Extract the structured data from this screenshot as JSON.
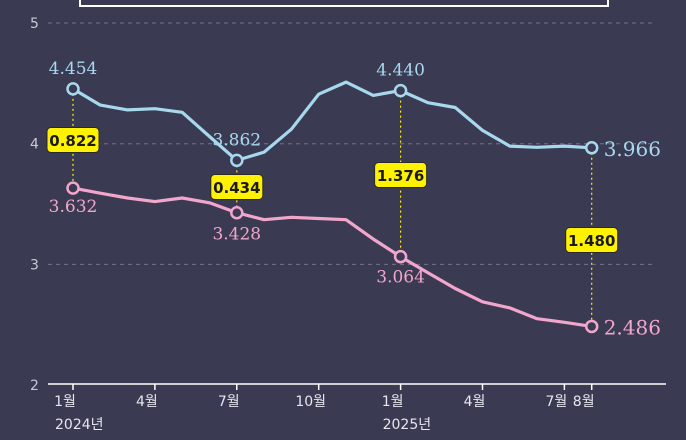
{
  "colors": {
    "background": "#3a3a52",
    "series_upper": "#a8d8ee",
    "series_lower": "#f2a6cc",
    "highlight_box": "#fff200",
    "grid": "#8a8aa0"
  },
  "chart_data": {
    "type": "line",
    "ylim": [
      2,
      5
    ],
    "y_ticks": [
      "2",
      "3",
      "4",
      "5"
    ],
    "x_tick_labels": [
      "1월",
      "4월",
      "7월",
      "10월",
      "1월",
      "4월",
      "7월",
      "8월"
    ],
    "x_tick_months": [
      0,
      3,
      6,
      9,
      12,
      15,
      18,
      19
    ],
    "year_labels": [
      {
        "text": "2024년",
        "month": 0
      },
      {
        "text": "2025년",
        "month": 12
      }
    ],
    "grid": "dashed-horizontal",
    "series": [
      {
        "key": "upper",
        "values": [
          4.454,
          4.32,
          4.28,
          4.29,
          4.26,
          4.06,
          3.862,
          3.93,
          4.12,
          4.41,
          4.51,
          4.4,
          4.44,
          4.34,
          4.3,
          4.11,
          3.98,
          3.97,
          3.98,
          3.966
        ]
      },
      {
        "key": "lower",
        "values": [
          3.632,
          3.59,
          3.55,
          3.52,
          3.55,
          3.51,
          3.428,
          3.37,
          3.39,
          3.38,
          3.37,
          3.21,
          3.064,
          2.93,
          2.8,
          2.69,
          2.64,
          2.55,
          2.52,
          2.486
        ]
      }
    ],
    "point_labels": [
      {
        "series": "upper",
        "month": 0,
        "text": "4.454"
      },
      {
        "series": "upper",
        "month": 6,
        "text": "3.862"
      },
      {
        "series": "upper",
        "month": 12,
        "text": "4.440"
      },
      {
        "series": "upper",
        "month": 19,
        "text": "3.966"
      },
      {
        "series": "lower",
        "month": 0,
        "text": "3.632"
      },
      {
        "series": "lower",
        "month": 6,
        "text": "3.428"
      },
      {
        "series": "lower",
        "month": 12,
        "text": "3.064"
      },
      {
        "series": "lower",
        "month": 19,
        "text": "2.486"
      }
    ],
    "gaps": [
      {
        "month": 0,
        "value": "0.822"
      },
      {
        "month": 6,
        "value": "0.434"
      },
      {
        "month": 12,
        "value": "1.376"
      },
      {
        "month": 19,
        "value": "1.480"
      }
    ]
  }
}
